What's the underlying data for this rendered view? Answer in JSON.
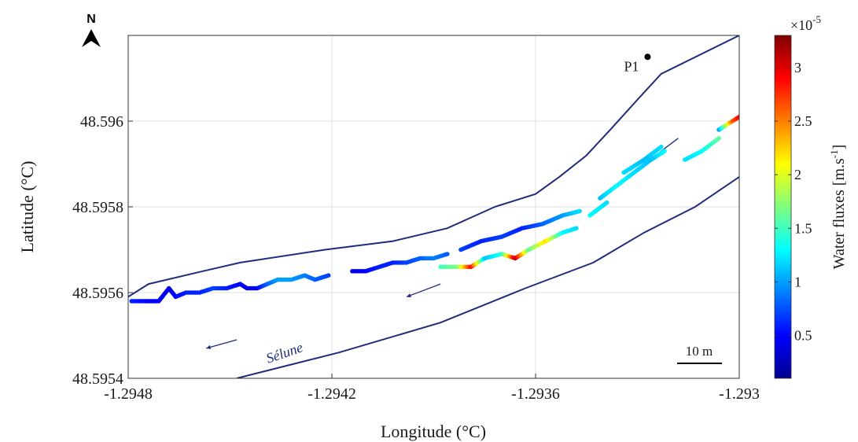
{
  "map": {
    "north_label": "N",
    "xlabel": "Longitude (°C)",
    "ylabel": "Latitude (°C)",
    "xlim": [
      -1.2948,
      -1.293
    ],
    "ylim": [
      48.5954,
      48.5962
    ],
    "xticks": [
      -1.2948,
      -1.2942,
      -1.2936,
      -1.293
    ],
    "xtick_labels": [
      "-1.2948",
      "-1.2942",
      "-1.2936",
      "-1.293"
    ],
    "yticks": [
      48.5954,
      48.5956,
      48.5958,
      48.596
    ],
    "ytick_labels": [
      "48.5954",
      "48.5956",
      "48.5958",
      "48.596"
    ],
    "grid": true,
    "station": {
      "label": "P1",
      "lon": -1.29327,
      "lat": 48.59615
    },
    "river_label": "Sélune",
    "scale_bar_label": "10 m",
    "colors": {
      "bank": "#1f2d7a",
      "grid": "#e2e2e2",
      "axis": "#333333",
      "station": "#000000"
    },
    "north_bank": [
      [
        -1.2948,
        48.59559
      ],
      [
        -1.29474,
        48.59562
      ],
      [
        -1.29458,
        48.59565
      ],
      [
        -1.29447,
        48.59567
      ],
      [
        -1.29422,
        48.5957
      ],
      [
        -1.29402,
        48.59572
      ],
      [
        -1.29386,
        48.59575
      ],
      [
        -1.29372,
        48.5958
      ],
      [
        -1.2936,
        48.59583
      ],
      [
        -1.29353,
        48.59587
      ],
      [
        -1.29345,
        48.59592
      ],
      [
        -1.29338,
        48.59598
      ],
      [
        -1.2933,
        48.59605
      ],
      [
        -1.29323,
        48.59611
      ],
      [
        -1.293,
        48.5962
      ]
    ],
    "south_bank": [
      [
        -1.29448,
        48.5954
      ],
      [
        -1.29418,
        48.59546
      ],
      [
        -1.29388,
        48.59553
      ],
      [
        -1.29363,
        48.59561
      ],
      [
        -1.29343,
        48.59567
      ],
      [
        -1.29328,
        48.59574
      ],
      [
        -1.29313,
        48.5958
      ],
      [
        -1.293,
        48.59587
      ]
    ],
    "flow_arrows": [
      {
        "from": [
          -1.29318,
          48.59596
        ],
        "to": [
          -1.29328,
          48.5959
        ]
      },
      {
        "from": [
          -1.29388,
          48.59562
        ],
        "to": [
          -1.29398,
          48.59559
        ]
      },
      {
        "from": [
          -1.29448,
          48.59549
        ],
        "to": [
          -1.29457,
          48.59547
        ]
      }
    ]
  },
  "chart_data": {
    "type": "scatter",
    "xlabel": "Longitude (°C)",
    "ylabel": "Latitude (°C)",
    "xlim": [
      -1.2948,
      -1.293
    ],
    "ylim": [
      48.5954,
      48.5962
    ],
    "colorbar": {
      "label": "Water fluxes [m.s-1]",
      "label_main": "Water fluxes [m.s",
      "label_sup": "-1",
      "label_end": "]",
      "multiplier_base": "×10",
      "multiplier_exp": "-5",
      "range": [
        0.1,
        3.3
      ],
      "ticks": [
        0.5,
        1,
        1.5,
        2,
        2.5,
        3
      ],
      "tick_labels": [
        "0.5",
        "1",
        "1.5",
        "2",
        "2.5",
        "3"
      ],
      "colormap": "jet"
    },
    "tracks": [
      {
        "points": [
          [
            -1.29479,
            48.59558,
            0.6
          ],
          [
            -1.29474,
            48.59558,
            0.5
          ],
          [
            -1.29471,
            48.59558,
            0.5
          ],
          [
            -1.29468,
            48.59561,
            0.4
          ],
          [
            -1.29466,
            48.59559,
            0.5
          ],
          [
            -1.29463,
            48.5956,
            0.6
          ],
          [
            -1.29459,
            48.5956,
            0.6
          ],
          [
            -1.29455,
            48.59561,
            0.7
          ],
          [
            -1.29451,
            48.59561,
            0.6
          ],
          [
            -1.29447,
            48.59562,
            0.5
          ],
          [
            -1.29445,
            48.59561,
            0.4
          ],
          [
            -1.29442,
            48.59561,
            0.5
          ],
          [
            -1.29439,
            48.59562,
            0.8
          ],
          [
            -1.29436,
            48.59563,
            1.0
          ],
          [
            -1.29432,
            48.59563,
            1.0
          ],
          [
            -1.29428,
            48.59564,
            0.9
          ],
          [
            -1.29425,
            48.59563,
            0.8
          ],
          [
            -1.29421,
            48.59564,
            0.7
          ]
        ]
      },
      {
        "points": [
          [
            -1.29414,
            48.59565,
            0.4
          ],
          [
            -1.2941,
            48.59565,
            0.5
          ],
          [
            -1.29406,
            48.59566,
            0.6
          ],
          [
            -1.29402,
            48.59567,
            0.6
          ],
          [
            -1.29398,
            48.59567,
            0.7
          ],
          [
            -1.29394,
            48.59568,
            0.8
          ],
          [
            -1.2939,
            48.59568,
            0.9
          ],
          [
            -1.29386,
            48.59569,
            0.8
          ]
        ]
      },
      {
        "points": [
          [
            -1.29382,
            48.5957,
            0.7
          ],
          [
            -1.29376,
            48.59572,
            0.6
          ],
          [
            -1.2937,
            48.59573,
            0.7
          ],
          [
            -1.29364,
            48.59575,
            0.6
          ],
          [
            -1.29358,
            48.59576,
            0.8
          ],
          [
            -1.29352,
            48.59578,
            1.0
          ],
          [
            -1.29347,
            48.59579,
            1.2
          ]
        ]
      },
      {
        "points": [
          [
            -1.29388,
            48.59566,
            1.5
          ],
          [
            -1.29383,
            48.59566,
            1.7
          ],
          [
            -1.29379,
            48.59566,
            2.9
          ],
          [
            -1.29375,
            48.59568,
            1.1
          ],
          [
            -1.2937,
            48.59569,
            1.4
          ],
          [
            -1.29366,
            48.59568,
            3.1
          ],
          [
            -1.29362,
            48.5957,
            1.6
          ],
          [
            -1.29357,
            48.59572,
            2.2
          ],
          [
            -1.29352,
            48.59574,
            1.3
          ],
          [
            -1.29348,
            48.59575,
            1.2
          ]
        ]
      },
      {
        "points": [
          [
            -1.29344,
            48.59578,
            1.3
          ],
          [
            -1.29339,
            48.59581,
            1.2
          ]
        ]
      },
      {
        "points": [
          [
            -1.29341,
            48.59582,
            1.1
          ],
          [
            -1.29336,
            48.59585,
            1.3
          ],
          [
            -1.29331,
            48.59588,
            1.2
          ],
          [
            -1.29326,
            48.59591,
            1.1
          ],
          [
            -1.29322,
            48.59593,
            1.3
          ]
        ]
      },
      {
        "points": [
          [
            -1.29334,
            48.59588,
            1.2
          ],
          [
            -1.29328,
            48.59591,
            1.1
          ],
          [
            -1.29323,
            48.59594,
            1.2
          ]
        ]
      },
      {
        "points": [
          [
            -1.29316,
            48.59591,
            1.2
          ],
          [
            -1.29311,
            48.59593,
            1.3
          ],
          [
            -1.29306,
            48.59596,
            1.6
          ]
        ]
      },
      {
        "points": [
          [
            -1.29306,
            48.59598,
            1.0
          ],
          [
            -1.29302,
            48.596,
            2.6
          ],
          [
            -1.29298,
            48.59602,
            3.2
          ],
          [
            -1.29294,
            48.59605,
            1.9
          ]
        ]
      }
    ]
  }
}
